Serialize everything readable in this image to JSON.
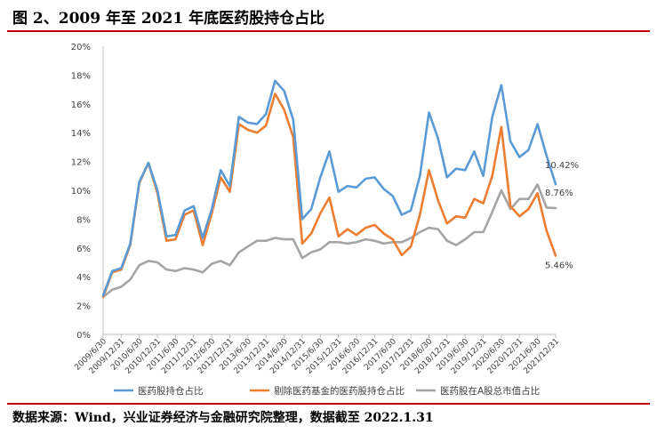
{
  "title": "图 2、2009 年至 2021 年底医药股持仓占比",
  "source": "数据来源：Wind，兴业证券经济与金融研究院整理，数据截至 2022.1.31",
  "chart_data": {
    "type": "line",
    "ylim": [
      0,
      20
    ],
    "y_ticks": [
      "0%",
      "2%",
      "4%",
      "6%",
      "8%",
      "10%",
      "12%",
      "14%",
      "16%",
      "18%",
      "20%"
    ],
    "grid": false,
    "legend_position": "bottom",
    "categories": [
      "2009/6/30",
      "2009/9/30",
      "2009/12/31",
      "2010/3/31",
      "2010/6/30",
      "2010/9/30",
      "2010/12/31",
      "2011/3/31",
      "2011/6/30",
      "2011/9/30",
      "2011/12/31",
      "2012/3/31",
      "2012/6/30",
      "2012/9/30",
      "2012/12/31",
      "2013/3/31",
      "2013/6/30",
      "2013/9/30",
      "2013/12/31",
      "2014/3/31",
      "2014/6/30",
      "2014/9/30",
      "2014/12/31",
      "2015/3/31",
      "2015/6/30",
      "2015/9/30",
      "2015/12/31",
      "2016/3/31",
      "2016/6/30",
      "2016/9/30",
      "2016/12/31",
      "2017/3/31",
      "2017/6/30",
      "2017/9/30",
      "2017/12/31",
      "2018/3/31",
      "2018/6/30",
      "2018/9/30",
      "2018/12/31",
      "2019/3/31",
      "2019/6/30",
      "2019/9/30",
      "2019/12/31",
      "2020/3/31",
      "2020/6/30",
      "2020/9/30",
      "2020/12/31",
      "2021/3/31",
      "2021/6/30",
      "2021/9/30",
      "2021/12/31"
    ],
    "x_tick_labels": [
      "2009/6/30",
      "2009/12/31",
      "2010/6/30",
      "2010/12/31",
      "2011/6/30",
      "2011/12/31",
      "2012/6/30",
      "2012/12/31",
      "2013/6/30",
      "2013/12/31",
      "2014/6/30",
      "2014/12/31",
      "2015/6/30",
      "2015/12/31",
      "2016/6/30",
      "2016/12/31",
      "2017/6/30",
      "2017/12/31",
      "2018/6/30",
      "2018/12/31",
      "2019/6/30",
      "2019/12/31",
      "2020/6/30",
      "2020/12/31",
      "2021/6/30",
      "2021/12/31"
    ],
    "series": [
      {
        "name": "医药股持仓占比",
        "color": "#5b9bd5",
        "end_label": "10.42%",
        "values": [
          2.7,
          4.4,
          4.6,
          6.3,
          10.6,
          11.9,
          10.0,
          6.8,
          6.9,
          8.6,
          8.9,
          6.7,
          8.7,
          11.4,
          10.3,
          15.1,
          14.7,
          14.6,
          15.3,
          17.6,
          16.9,
          14.9,
          8.0,
          8.7,
          10.9,
          12.7,
          9.9,
          10.3,
          10.2,
          10.8,
          10.9,
          10.1,
          9.6,
          8.3,
          8.6,
          11.0,
          15.4,
          13.6,
          10.9,
          11.5,
          11.4,
          12.7,
          11.0,
          15.1,
          17.3,
          13.4,
          12.3,
          12.8,
          14.6,
          12.4,
          10.42
        ]
      },
      {
        "name": "剔除医药基金的医药股持仓占比",
        "color": "#ed7d31",
        "end_label": "5.46%",
        "values": [
          2.6,
          4.3,
          4.5,
          6.2,
          10.5,
          11.9,
          9.8,
          6.5,
          6.6,
          8.3,
          8.6,
          6.2,
          8.4,
          10.9,
          9.9,
          14.6,
          14.2,
          14.0,
          14.5,
          16.7,
          15.6,
          13.7,
          6.3,
          7.0,
          8.4,
          9.5,
          6.8,
          7.3,
          6.9,
          7.4,
          7.6,
          7.0,
          6.6,
          5.5,
          6.1,
          8.3,
          11.4,
          9.3,
          7.7,
          8.2,
          8.1,
          9.4,
          9.1,
          11.0,
          14.4,
          8.9,
          8.2,
          8.7,
          9.8,
          7.2,
          5.46
        ]
      },
      {
        "name": "医药股在A股总市值占比",
        "color": "#a5a5a5",
        "end_label": "8.76%",
        "values": [
          2.6,
          3.1,
          3.3,
          3.8,
          4.8,
          5.1,
          5.0,
          4.5,
          4.4,
          4.6,
          4.5,
          4.3,
          4.9,
          5.1,
          4.8,
          5.7,
          6.1,
          6.5,
          6.5,
          6.7,
          6.6,
          6.6,
          5.3,
          5.7,
          5.9,
          6.4,
          6.4,
          6.3,
          6.4,
          6.6,
          6.5,
          6.3,
          6.4,
          6.4,
          6.7,
          7.1,
          7.4,
          7.3,
          6.5,
          6.2,
          6.6,
          7.1,
          7.1,
          8.5,
          10.0,
          8.7,
          9.4,
          9.4,
          10.4,
          8.8,
          8.76
        ]
      }
    ]
  }
}
